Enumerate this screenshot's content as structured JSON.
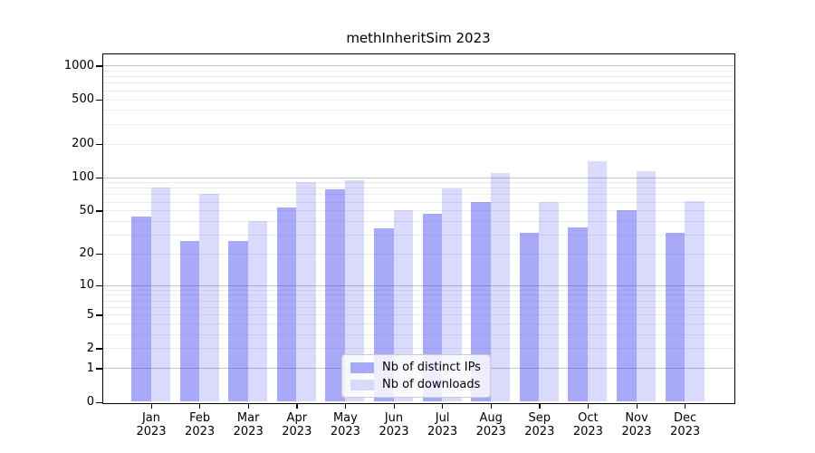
{
  "title": "methInheritSim 2023",
  "chart_data": {
    "type": "bar",
    "scale": "log1p",
    "title": "methInheritSim 2023",
    "categories": [
      "Jan",
      "Feb",
      "Mar",
      "Apr",
      "May",
      "Jun",
      "Jul",
      "Aug",
      "Sep",
      "Oct",
      "Nov",
      "Dec"
    ],
    "x_year": "2023",
    "series": [
      {
        "name": "Nb of distinct IPs",
        "color": "rgba(70,70,245,0.465)",
        "swatch": "#a9a9fa",
        "values": [
          44,
          26,
          26,
          53,
          78,
          34,
          47,
          60,
          31,
          35,
          50,
          31
        ]
      },
      {
        "name": "Nb of downloads",
        "color": "rgba(70,70,245,0.20)",
        "swatch": "#d9d9fb",
        "values": [
          80,
          71,
          40,
          91,
          93,
          50,
          79,
          108,
          60,
          140,
          114,
          61
        ]
      }
    ],
    "y_ticks": [
      0,
      1,
      2,
      5,
      10,
      20,
      50,
      100,
      200,
      500,
      1000
    ],
    "ylim": [
      0,
      1270
    ],
    "grid": true,
    "grid_major_values": [
      1,
      10,
      100,
      1000
    ],
    "legend_position": "lower center",
    "xlabel": "",
    "ylabel": ""
  }
}
